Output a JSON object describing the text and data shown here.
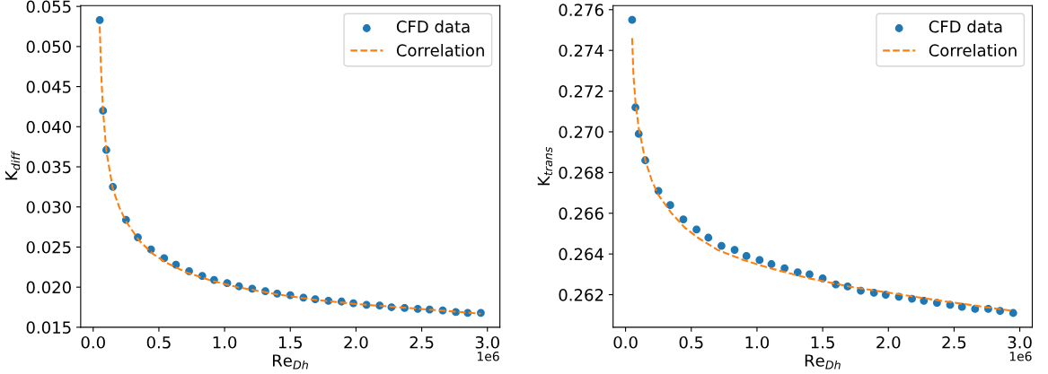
{
  "chart_data": [
    {
      "type": "scatter",
      "xlabel": "Re$_{Dh}$",
      "ylabel": "K$_{diff}$",
      "legend": "top right",
      "grid": false,
      "annotations": [
        "1e6"
      ],
      "xlim": [
        -0.095,
        3.095
      ],
      "xticks": [
        {
          "value": 0,
          "label": "0.0"
        },
        0.5,
        {
          "value": 1,
          "label": "1.0"
        },
        1.5,
        {
          "value": 2,
          "label": "2.0"
        },
        2.5,
        {
          "value": 3,
          "label": "3.0"
        }
      ],
      "ylim": [
        0.015,
        0.0551
      ],
      "yticks": [
        {
          "value": 0.015,
          "label": "0.015"
        },
        {
          "value": 0.02,
          "label": "0.020"
        },
        {
          "value": 0.025,
          "label": "0.025"
        },
        {
          "value": 0.03,
          "label": "0.030"
        },
        {
          "value": 0.035,
          "label": "0.035"
        },
        {
          "value": 0.04,
          "label": "0.040"
        },
        {
          "value": 0.045,
          "label": "0.045"
        },
        {
          "value": 0.05,
          "label": "0.050"
        },
        {
          "value": 0.055,
          "label": "0.055"
        }
      ],
      "series": [
        {
          "name": "CFD data",
          "type": "scatter",
          "marker": "circle",
          "color": "#1f77b4",
          "x": [
            0.05,
            0.075,
            0.1,
            0.15,
            0.25,
            0.34,
            0.44,
            0.54,
            0.63,
            0.73,
            0.83,
            0.92,
            1.02,
            1.11,
            1.21,
            1.31,
            1.4,
            1.5,
            1.6,
            1.69,
            1.79,
            1.89,
            1.98,
            2.08,
            2.18,
            2.27,
            2.37,
            2.47,
            2.56,
            2.66,
            2.76,
            2.85,
            2.95
          ],
          "values": [
            0.0533,
            0.042,
            0.0371,
            0.0325,
            0.0284,
            0.0262,
            0.0247,
            0.0236,
            0.0228,
            0.022,
            0.0214,
            0.0209,
            0.0205,
            0.0201,
            0.0198,
            0.0195,
            0.0192,
            0.019,
            0.0187,
            0.0185,
            0.0183,
            0.0182,
            0.018,
            0.0178,
            0.0177,
            0.0175,
            0.0174,
            0.0173,
            0.0172,
            0.0171,
            0.0169,
            0.0168,
            0.0168
          ]
        },
        {
          "name": "Correlation",
          "type": "line",
          "line_style": "dashed",
          "color": "#ff7f0e",
          "x": [
            0.05,
            0.06,
            0.075,
            0.1,
            0.15,
            0.2,
            0.25,
            0.35,
            0.45,
            0.55,
            0.7,
            0.9,
            1.1,
            1.4,
            1.7,
            2.0,
            2.4,
            2.95
          ],
          "values": [
            0.0525,
            0.047,
            0.042,
            0.037,
            0.0322,
            0.0299,
            0.0282,
            0.0258,
            0.0242,
            0.0231,
            0.0219,
            0.0208,
            0.02,
            0.0191,
            0.0184,
            0.0179,
            0.0174,
            0.0167
          ]
        }
      ]
    },
    {
      "type": "scatter",
      "xlabel": "Re$_{Dh}$",
      "ylabel": "K$_{trans}$",
      "legend": "top right",
      "grid": false,
      "annotations": [
        "1e6"
      ],
      "xlim": [
        -0.095,
        3.095
      ],
      "xticks": [
        {
          "value": 0,
          "label": "0.0"
        },
        0.5,
        {
          "value": 1,
          "label": "1.0"
        },
        1.5,
        {
          "value": 2,
          "label": "2.0"
        },
        2.5,
        {
          "value": 3,
          "label": "3.0"
        }
      ],
      "ylim": [
        0.2604,
        0.2762
      ],
      "yticks": [
        {
          "value": 0.262,
          "label": "0.262"
        },
        {
          "value": 0.264,
          "label": "0.264"
        },
        {
          "value": 0.266,
          "label": "0.266"
        },
        {
          "value": 0.268,
          "label": "0.268"
        },
        {
          "value": 0.27,
          "label": "0.270"
        },
        {
          "value": 0.272,
          "label": "0.272"
        },
        {
          "value": 0.274,
          "label": "0.274"
        },
        {
          "value": 0.276,
          "label": "0.276"
        }
      ],
      "series": [
        {
          "name": "CFD data",
          "type": "scatter",
          "marker": "circle",
          "color": "#1f77b4",
          "x": [
            0.05,
            0.075,
            0.1,
            0.15,
            0.25,
            0.34,
            0.44,
            0.54,
            0.63,
            0.73,
            0.83,
            0.92,
            1.02,
            1.11,
            1.21,
            1.31,
            1.4,
            1.5,
            1.6,
            1.69,
            1.79,
            1.89,
            1.98,
            2.08,
            2.18,
            2.27,
            2.37,
            2.47,
            2.56,
            2.66,
            2.76,
            2.85,
            2.95
          ],
          "values": [
            0.2755,
            0.2712,
            0.2699,
            0.2686,
            0.2671,
            0.2664,
            0.2657,
            0.2652,
            0.2648,
            0.2644,
            0.2642,
            0.2639,
            0.2637,
            0.2635,
            0.2633,
            0.2631,
            0.263,
            0.2628,
            0.2625,
            0.2624,
            0.2622,
            0.2621,
            0.262,
            0.2619,
            0.2618,
            0.2617,
            0.2616,
            0.2615,
            0.2614,
            0.2613,
            0.2613,
            0.2612,
            0.2611
          ]
        },
        {
          "name": "Correlation",
          "type": "line",
          "line_style": "dashed",
          "color": "#ff7f0e",
          "x": [
            0.05,
            0.06,
            0.075,
            0.1,
            0.15,
            0.2,
            0.25,
            0.35,
            0.45,
            0.55,
            0.7,
            0.9,
            1.1,
            1.4,
            1.7,
            2.0,
            2.4,
            2.95
          ],
          "values": [
            0.2746,
            0.2728,
            0.2715,
            0.2702,
            0.2686,
            0.2676,
            0.2669,
            0.266,
            0.2653,
            0.2648,
            0.2642,
            0.2637,
            0.2633,
            0.2628,
            0.2624,
            0.2621,
            0.2617,
            0.2612
          ]
        }
      ]
    }
  ]
}
